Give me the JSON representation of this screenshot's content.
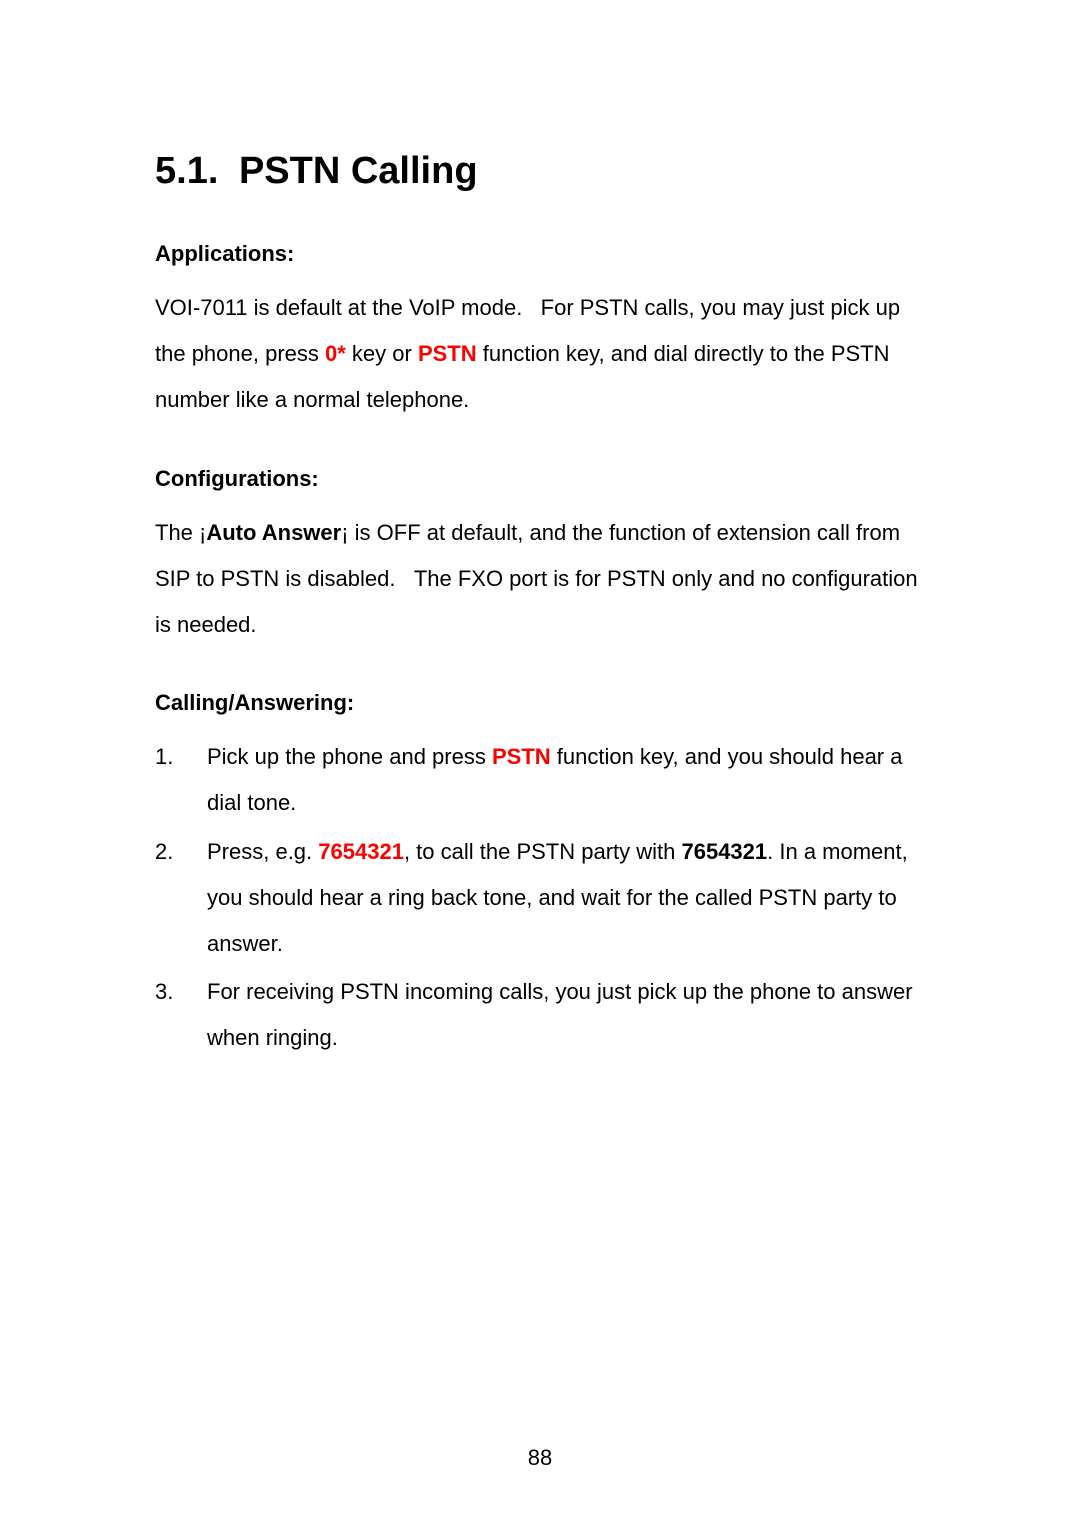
{
  "title": {
    "number": "5.1.",
    "text": "PSTN Calling"
  },
  "sections": {
    "applications": {
      "heading": "Applications:",
      "text_parts": {
        "part1": "VOI-7011 is default at the VoIP mode.   For PSTN calls, you may just pick up the phone, press ",
        "key1": "0*",
        "part2": " key or ",
        "key2": "PSTN",
        "part3": " function key, and dial directly to the PSTN number like a normal telephone."
      }
    },
    "configurations": {
      "heading": "Configurations:",
      "text_parts": {
        "part1": "The ¡",
        "bold1": "Auto Answer",
        "part2": "¡ is OFF at default, and the function of extension call from SIP to PSTN is disabled.   The FXO port is for PSTN only and no configuration is needed."
      }
    },
    "calling": {
      "heading": "Calling/Answering:",
      "items": {
        "item1": {
          "part1": "Pick up the phone and press ",
          "key1": "PSTN",
          "part2": " function key, and you should hear a dial tone."
        },
        "item2": {
          "part1": "Press, e.g. ",
          "key1": "7654321",
          "part2": ", to call the PSTN party with ",
          "bold1": "7654321",
          "part3": ". In a moment, you should hear a ring back tone, and wait for the called PSTN party to answer."
        },
        "item3": {
          "text": "For receiving PSTN incoming calls, you just pick up the phone to answer when ringing."
        }
      }
    }
  },
  "page_number": "88",
  "colors": {
    "text": "#000000",
    "background": "#ffffff",
    "highlight": "#ff0000"
  },
  "typography": {
    "title_size": 38,
    "body_size": 22,
    "font_family": "Arial"
  }
}
